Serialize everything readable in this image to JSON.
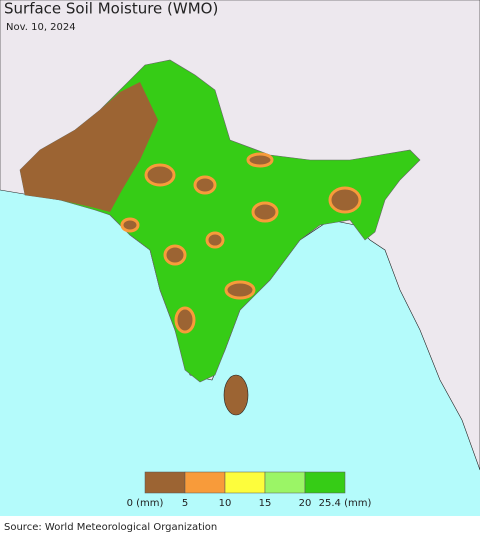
{
  "title": "Surface Soil Moisture (WMO)",
  "date": "Nov. 10, 2024",
  "legend": {
    "colors": [
      "#9c6433",
      "#f89b3a",
      "#fdfd3c",
      "#9bf566",
      "#36cc16"
    ],
    "ticks": [
      {
        "value": 0,
        "label": "0 (mm)"
      },
      5,
      10,
      15,
      20,
      {
        "value": 25.4,
        "label": "25.4 (mm)"
      }
    ]
  },
  "source": "Source: World Meteorological Organization"
}
